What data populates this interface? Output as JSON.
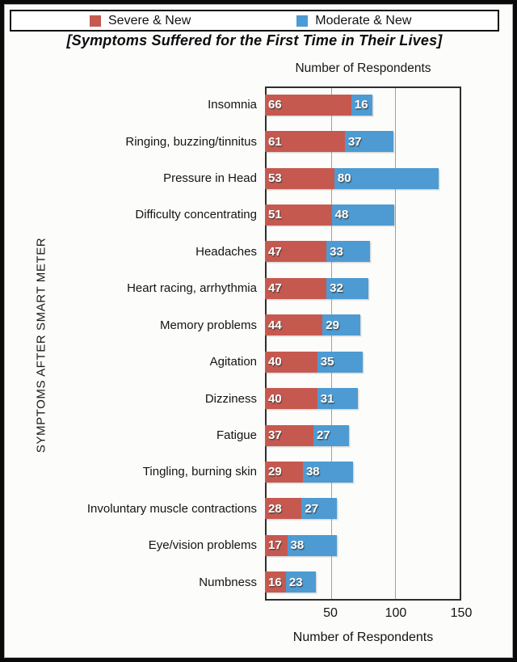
{
  "chart_data": {
    "type": "bar",
    "orientation": "horizontal",
    "stacked": true,
    "title": "[Symptoms Suffered for the First Time in Their Lives]",
    "xlabel_top": "Number of Respondents",
    "xlabel": "Number of Respondents",
    "ylabel": "SYMPTOMS AFTER SMART METER",
    "xlim": [
      0,
      150
    ],
    "xticks": [
      50,
      100,
      150
    ],
    "gridlines_x": [
      50,
      100
    ],
    "grid": "vertical gridlines at 50 and 100, drawn over bars",
    "legend_position": "top, boxed, horizontal",
    "value_labels": "white bold numbers inside start of each segment",
    "categories": [
      "Insomnia",
      "Ringing, buzzing/tinnitus",
      "Pressure in Head",
      "Difficulty concentrating",
      "Headaches",
      "Heart racing, arrhythmia",
      "Memory problems",
      "Agitation",
      "Dizziness",
      "Fatigue",
      "Tingling, burning skin",
      "Involuntary muscle contractions",
      "Eye/vision problems",
      "Numbness"
    ],
    "series": [
      {
        "name": "Severe & New",
        "color": "#C6594F",
        "values": [
          66,
          61,
          53,
          51,
          47,
          47,
          44,
          40,
          40,
          37,
          29,
          28,
          17,
          16
        ]
      },
      {
        "name": "Moderate & New",
        "color": "#4D9BD2",
        "values": [
          16,
          37,
          80,
          48,
          33,
          32,
          29,
          35,
          31,
          27,
          38,
          27,
          38,
          23
        ]
      }
    ],
    "colors": {
      "grid": "#545454",
      "plot_border": "#2e2e2e",
      "frame_border": "#0a0a0a",
      "value_text": "#ffffff"
    }
  }
}
